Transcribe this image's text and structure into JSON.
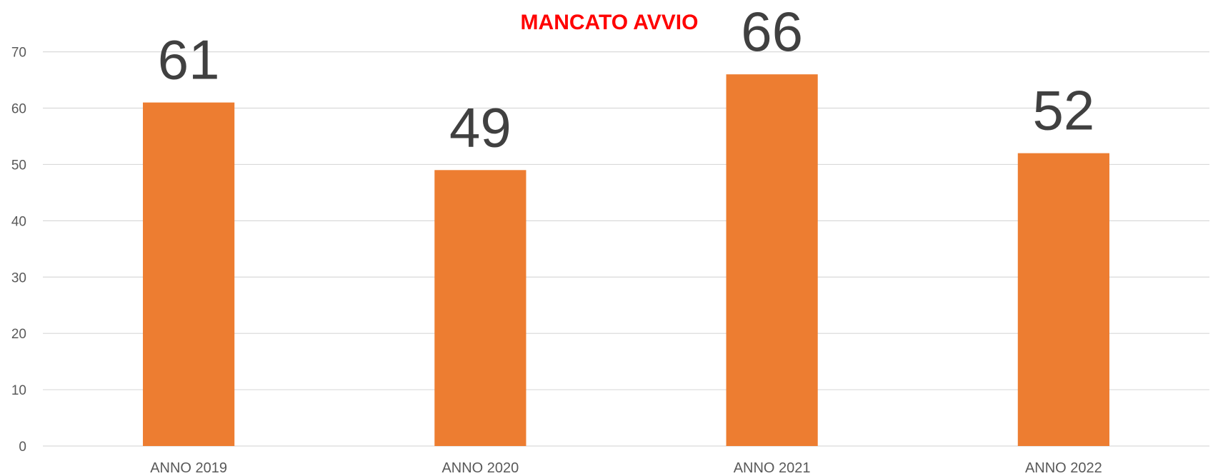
{
  "chart_data": {
    "type": "bar",
    "title": "MANCATO AVVIO",
    "categories": [
      "ANNO 2019",
      "ANNO 2020",
      "ANNO 2021",
      "ANNO 2022"
    ],
    "values": [
      61,
      49,
      66,
      52
    ],
    "color": "#ed7d31",
    "ylim": [
      0,
      70
    ],
    "yticks": [
      0,
      10,
      20,
      30,
      40,
      50,
      60,
      70
    ],
    "grid": true
  }
}
